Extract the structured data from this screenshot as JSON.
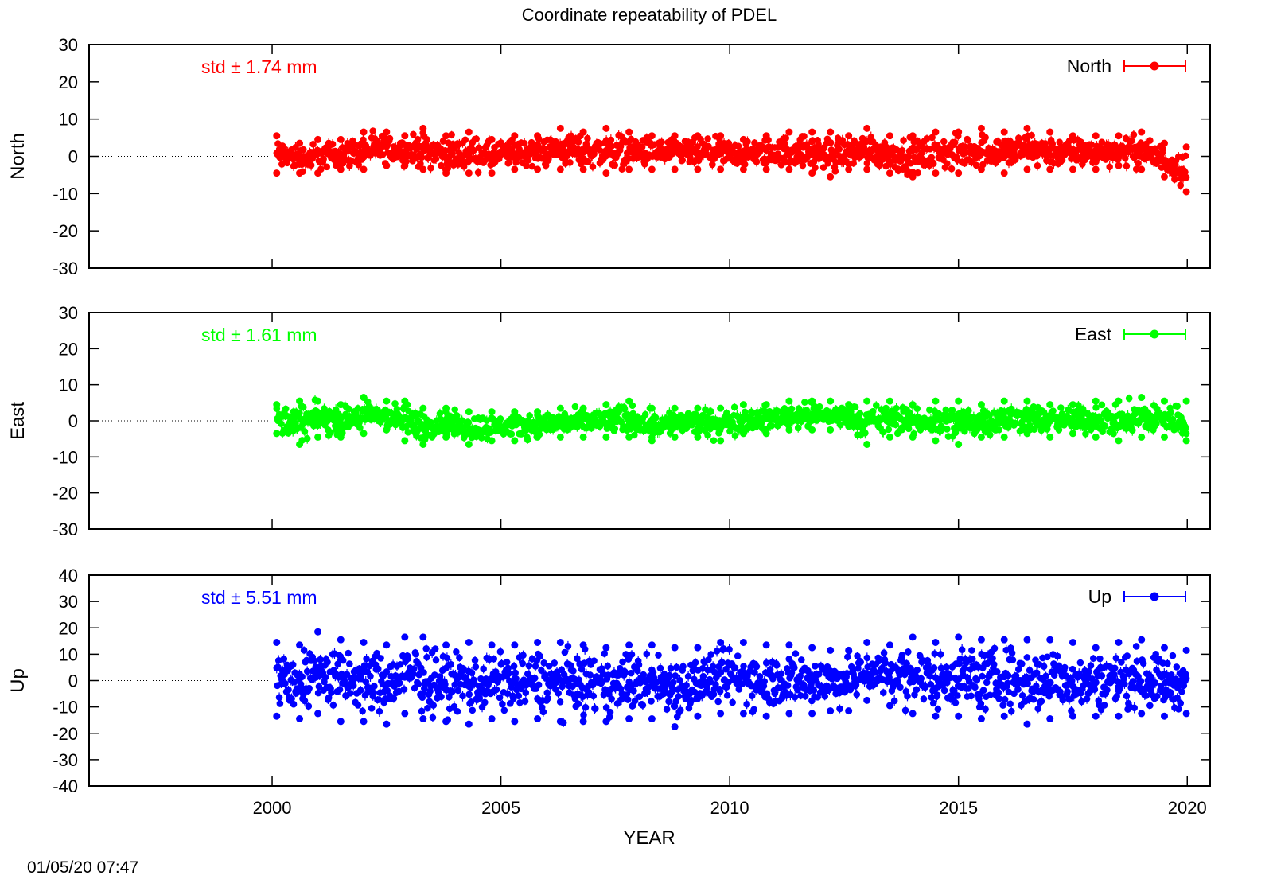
{
  "title": "Coordinate repeatability of PDEL",
  "timestamp": "01/05/20 07:47",
  "chart_data": [
    {
      "type": "scatter",
      "name": "North",
      "ylabel": "North",
      "xlabel": "",
      "legend": "North",
      "legend_position": "top-right",
      "std_text": "std ± 1.74 mm",
      "color": "#ff0000",
      "xlim": [
        1996,
        2020.5
      ],
      "ylim": [
        -30,
        30
      ],
      "yticks": [
        -30,
        -20,
        -10,
        0,
        10,
        20,
        30
      ],
      "xticks": [
        2000,
        2005,
        2010,
        2015,
        2020
      ],
      "grid": false,
      "zero_line_x": [
        1996,
        2000.1
      ],
      "data_range": [
        2000.1,
        2019.98
      ],
      "envelope": [
        [
          2000.1,
          -5,
          6
        ],
        [
          2000.6,
          -5,
          4
        ],
        [
          2001.0,
          -5,
          5
        ],
        [
          2001.5,
          -4,
          5
        ],
        [
          2002.0,
          -4,
          7
        ],
        [
          2002.5,
          -3,
          7
        ],
        [
          2002.9,
          -3,
          6
        ],
        [
          2003.3,
          -4,
          8
        ],
        [
          2003.8,
          -5,
          6
        ],
        [
          2004.3,
          -5,
          7
        ],
        [
          2004.8,
          -5,
          5
        ],
        [
          2005.3,
          -4,
          6
        ],
        [
          2005.8,
          -4,
          6
        ],
        [
          2006.3,
          -4,
          8
        ],
        [
          2006.8,
          -4,
          7
        ],
        [
          2007.3,
          -5,
          8
        ],
        [
          2007.8,
          -4,
          7
        ],
        [
          2008.3,
          -4,
          6
        ],
        [
          2008.8,
          -4,
          6
        ],
        [
          2009.3,
          -4,
          6
        ],
        [
          2009.8,
          -4,
          6
        ],
        [
          2010.3,
          -4,
          5
        ],
        [
          2010.8,
          -4,
          6
        ],
        [
          2011.3,
          -4,
          7
        ],
        [
          2011.8,
          -5,
          7
        ],
        [
          2012.2,
          -6,
          7
        ],
        [
          2012.6,
          -4,
          6
        ],
        [
          2013.0,
          -4,
          8
        ],
        [
          2013.5,
          -5,
          6
        ],
        [
          2014.0,
          -6,
          6
        ],
        [
          2014.5,
          -5,
          7
        ],
        [
          2015.0,
          -5,
          7
        ],
        [
          2015.5,
          -4,
          8
        ],
        [
          2016.0,
          -5,
          7
        ],
        [
          2016.5,
          -4,
          8
        ],
        [
          2017.0,
          -4,
          7
        ],
        [
          2017.5,
          -4,
          6
        ],
        [
          2018.0,
          -4,
          6
        ],
        [
          2018.5,
          -3,
          6
        ],
        [
          2019.0,
          -4,
          7
        ],
        [
          2019.5,
          -6,
          4
        ],
        [
          2019.98,
          -10,
          3
        ]
      ]
    },
    {
      "type": "scatter",
      "name": "East",
      "ylabel": "East",
      "xlabel": "",
      "legend": "East",
      "legend_position": "top-right",
      "std_text": "std ± 1.61 mm",
      "color": "#00ff00",
      "xlim": [
        1996,
        2020.5
      ],
      "ylim": [
        -30,
        30
      ],
      "yticks": [
        -30,
        -20,
        -10,
        0,
        10,
        20,
        30
      ],
      "xticks": [
        2000,
        2005,
        2010,
        2015,
        2020
      ],
      "grid": false,
      "zero_line_x": [
        1996,
        2000.1
      ],
      "data_range": [
        2000.1,
        2019.98
      ],
      "envelope": [
        [
          2000.1,
          -4,
          5
        ],
        [
          2000.6,
          -7,
          6
        ],
        [
          2001.0,
          -5,
          6
        ],
        [
          2001.5,
          -5,
          5
        ],
        [
          2002.0,
          -4,
          7
        ],
        [
          2002.5,
          -3,
          6
        ],
        [
          2002.9,
          -6,
          6
        ],
        [
          2003.3,
          -7,
          4
        ],
        [
          2003.8,
          -5,
          4
        ],
        [
          2004.3,
          -7,
          3
        ],
        [
          2004.8,
          -6,
          3
        ],
        [
          2005.3,
          -6,
          3
        ],
        [
          2005.8,
          -5,
          3
        ],
        [
          2006.3,
          -5,
          4
        ],
        [
          2006.8,
          -5,
          4
        ],
        [
          2007.3,
          -5,
          5
        ],
        [
          2007.8,
          -5,
          6
        ],
        [
          2008.3,
          -6,
          4
        ],
        [
          2008.8,
          -5,
          4
        ],
        [
          2009.3,
          -5,
          4
        ],
        [
          2009.8,
          -6,
          4
        ],
        [
          2010.3,
          -4,
          5
        ],
        [
          2010.8,
          -4,
          5
        ],
        [
          2011.3,
          -3,
          6
        ],
        [
          2011.8,
          -3,
          6
        ],
        [
          2012.2,
          -3,
          6
        ],
        [
          2012.6,
          -2,
          5
        ],
        [
          2013.0,
          -7,
          6
        ],
        [
          2013.5,
          -5,
          6
        ],
        [
          2014.0,
          -5,
          5
        ],
        [
          2014.5,
          -6,
          6
        ],
        [
          2015.0,
          -7,
          6
        ],
        [
          2015.5,
          -5,
          5
        ],
        [
          2016.0,
          -5,
          6
        ],
        [
          2016.5,
          -4,
          6
        ],
        [
          2017.0,
          -5,
          5
        ],
        [
          2017.5,
          -4,
          5
        ],
        [
          2018.0,
          -5,
          6
        ],
        [
          2018.5,
          -6,
          6
        ],
        [
          2019.0,
          -5,
          7
        ],
        [
          2019.5,
          -5,
          6
        ],
        [
          2019.98,
          -6,
          6
        ]
      ]
    },
    {
      "type": "scatter",
      "name": "Up",
      "ylabel": "Up",
      "xlabel": "YEAR",
      "legend": "Up",
      "legend_position": "top-right",
      "std_text": "std ± 5.51 mm",
      "color": "#0000ff",
      "xlim": [
        1996,
        2020.5
      ],
      "ylim": [
        -40,
        40
      ],
      "yticks": [
        -40,
        -30,
        -20,
        -10,
        0,
        10,
        20,
        30,
        40
      ],
      "xticks": [
        2000,
        2005,
        2010,
        2015,
        2020
      ],
      "grid": false,
      "zero_line_x": [
        1996,
        2000.1
      ],
      "data_range": [
        2000.1,
        2019.98
      ],
      "envelope": [
        [
          2000.1,
          -14,
          15
        ],
        [
          2000.6,
          -15,
          14
        ],
        [
          2001.0,
          -13,
          19
        ],
        [
          2001.5,
          -16,
          16
        ],
        [
          2002.0,
          -16,
          15
        ],
        [
          2002.5,
          -17,
          14
        ],
        [
          2002.9,
          -13,
          17
        ],
        [
          2003.3,
          -15,
          17
        ],
        [
          2003.8,
          -16,
          14
        ],
        [
          2004.3,
          -17,
          15
        ],
        [
          2004.8,
          -15,
          14
        ],
        [
          2005.3,
          -16,
          14
        ],
        [
          2005.8,
          -15,
          15
        ],
        [
          2006.3,
          -16,
          15
        ],
        [
          2006.8,
          -16,
          14
        ],
        [
          2007.3,
          -16,
          13
        ],
        [
          2007.8,
          -15,
          14
        ],
        [
          2008.3,
          -15,
          14
        ],
        [
          2008.8,
          -18,
          13
        ],
        [
          2009.3,
          -14,
          13
        ],
        [
          2009.8,
          -13,
          15
        ],
        [
          2010.3,
          -13,
          15
        ],
        [
          2010.8,
          -14,
          14
        ],
        [
          2011.3,
          -13,
          14
        ],
        [
          2011.8,
          -13,
          13
        ],
        [
          2012.2,
          -12,
          12
        ],
        [
          2012.6,
          -12,
          12
        ],
        [
          2013.0,
          -8,
          15
        ],
        [
          2013.5,
          -10,
          14
        ],
        [
          2014.0,
          -13,
          17
        ],
        [
          2014.5,
          -14,
          15
        ],
        [
          2015.0,
          -14,
          17
        ],
        [
          2015.5,
          -15,
          16
        ],
        [
          2016.0,
          -14,
          16
        ],
        [
          2016.5,
          -17,
          16
        ],
        [
          2017.0,
          -15,
          16
        ],
        [
          2017.5,
          -14,
          15
        ],
        [
          2018.0,
          -14,
          13
        ],
        [
          2018.5,
          -14,
          15
        ],
        [
          2019.0,
          -13,
          16
        ],
        [
          2019.5,
          -14,
          13
        ],
        [
          2019.98,
          -13,
          12
        ]
      ]
    }
  ]
}
